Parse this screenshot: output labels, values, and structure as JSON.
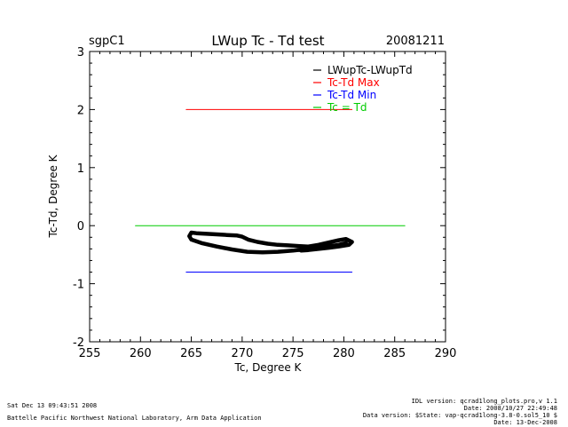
{
  "chart_data": {
    "type": "line",
    "site": "sgpC1",
    "title": "LWup Tc - Td test",
    "date": "20081211",
    "xlabel": "Tc, Degree K",
    "ylabel": "Tc-Td, Degree K",
    "xlim": [
      255,
      290
    ],
    "ylim": [
      -2,
      3
    ],
    "xticks": [
      255,
      260,
      265,
      270,
      275,
      280,
      285,
      290
    ],
    "yticks": [
      -2,
      -1,
      0,
      1,
      2,
      3
    ],
    "legend_position": "top-right",
    "series": [
      {
        "name": "LWupTc-LWupTd",
        "color": "#000000",
        "x": [
          264.8,
          265.0,
          265.5,
          266.5,
          267.5,
          268.5,
          269.5,
          270.0,
          270.6,
          271.5,
          272.5,
          273.5,
          274.5,
          275.5,
          276.5,
          277.5,
          278.5,
          279.5,
          280.2,
          280.8,
          280.5,
          279.5,
          278.5,
          277.5,
          276.5,
          275.8,
          276.5,
          277.5,
          278.5,
          279.5,
          280.2,
          279.5,
          278.0,
          276.5,
          275.0,
          273.5,
          272.0,
          270.5,
          269.0,
          267.5,
          266.0,
          265.0,
          264.8
        ],
        "y": [
          -0.18,
          -0.12,
          -0.13,
          -0.14,
          -0.15,
          -0.16,
          -0.17,
          -0.19,
          -0.24,
          -0.28,
          -0.31,
          -0.33,
          -0.34,
          -0.35,
          -0.36,
          -0.33,
          -0.29,
          -0.25,
          -0.23,
          -0.28,
          -0.33,
          -0.36,
          -0.38,
          -0.4,
          -0.42,
          -0.43,
          -0.41,
          -0.39,
          -0.37,
          -0.34,
          -0.3,
          -0.33,
          -0.37,
          -0.4,
          -0.43,
          -0.45,
          -0.46,
          -0.45,
          -0.41,
          -0.36,
          -0.3,
          -0.24,
          -0.18
        ]
      },
      {
        "name": "Tc-Td Max",
        "color": "#ff0000",
        "x": [
          264.5,
          280.8
        ],
        "y": [
          2.0,
          2.0
        ]
      },
      {
        "name": "Tc-Td Min",
        "color": "#0000ff",
        "x": [
          264.5,
          280.8
        ],
        "y": [
          -0.8,
          -0.8
        ]
      },
      {
        "name": "Tc = Td",
        "color": "#00cc00",
        "x": [
          259.5,
          286.0
        ],
        "y": [
          0.0,
          0.0
        ]
      }
    ]
  },
  "footer": {
    "timestamp": "Sat Dec 13 09:43:51 2008",
    "lab": "Battelle Pacific Northwest National Laboratory, Arm Data Application",
    "idl_version": "IDL version: qcrad1long_plots.pro,v 1.1",
    "idl_date": "Date: 2008/10/27 22:49:48",
    "data_version": "Data version: $State: vap-qcrad1long-3.8-0.sol5_10 $",
    "data_date": "Date: 13-Dec-2008"
  }
}
